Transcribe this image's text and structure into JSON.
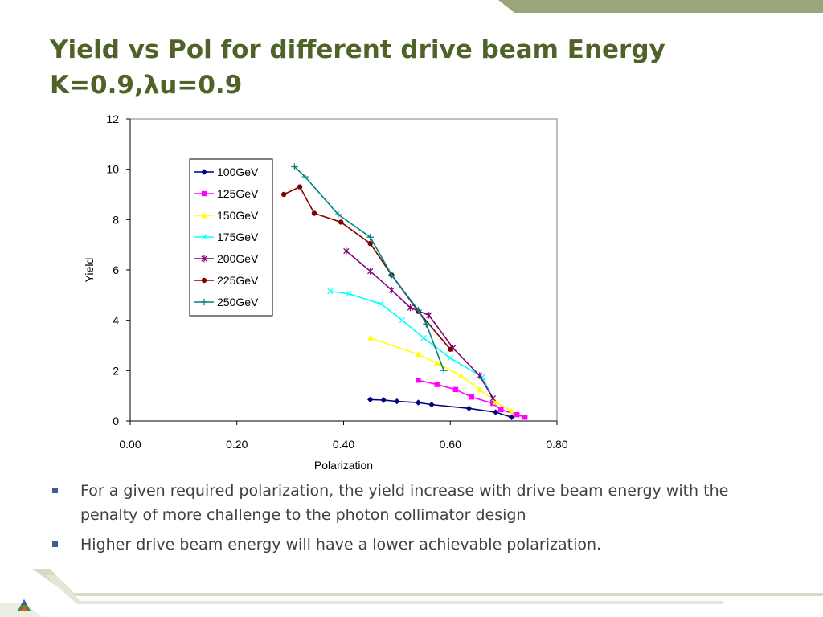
{
  "slide": {
    "title_line1": "Yield vs Pol for different drive beam Energy",
    "title_line2": "K=0.9,λu=0.9",
    "bullets": [
      "For a given required polarization, the yield increase with drive beam energy with the penalty of more challenge to the photon collimator design",
      "Higher drive beam energy will have a lower achievable polarization."
    ]
  },
  "colors": {
    "title": "#4f6228",
    "band": "#9aa57a",
    "bullet": "#3d5a99"
  },
  "chart_data": {
    "type": "line",
    "xlabel": "Polarization",
    "ylabel": "Yield",
    "xlim": [
      0,
      0.8
    ],
    "ylim": [
      0,
      12
    ],
    "x_ticks": [
      "0.00",
      "0.20",
      "0.40",
      "0.60",
      "0.80"
    ],
    "y_ticks": [
      "0",
      "2",
      "4",
      "6",
      "8",
      "10",
      "12"
    ],
    "grid": false,
    "legend_position": "top-left",
    "series": [
      {
        "name": "100GeV",
        "color": "#000080",
        "marker": "diamond",
        "x": [
          0.45,
          0.475,
          0.5,
          0.54,
          0.565,
          0.635,
          0.685,
          0.715
        ],
        "y": [
          0.85,
          0.83,
          0.78,
          0.73,
          0.65,
          0.5,
          0.35,
          0.15
        ]
      },
      {
        "name": "125GeV",
        "color": "#ff00ff",
        "marker": "square",
        "x": [
          0.54,
          0.575,
          0.61,
          0.64,
          0.68,
          0.695,
          0.725,
          0.74
        ],
        "y": [
          1.62,
          1.45,
          1.25,
          0.95,
          0.7,
          0.45,
          0.25,
          0.15
        ]
      },
      {
        "name": "150GeV",
        "color": "#ffff00",
        "marker": "triangle",
        "x": [
          0.45,
          0.54,
          0.575,
          0.62,
          0.655,
          0.685,
          0.715
        ],
        "y": [
          3.3,
          2.65,
          2.3,
          1.8,
          1.25,
          0.75,
          0.4
        ]
      },
      {
        "name": "175GeV",
        "color": "#00ffff",
        "marker": "x",
        "x": [
          0.375,
          0.41,
          0.47,
          0.51,
          0.55,
          0.6,
          0.66,
          0.68
        ],
        "y": [
          5.15,
          5.05,
          4.65,
          4.0,
          3.3,
          2.5,
          1.75,
          0.9
        ]
      },
      {
        "name": "200GeV",
        "color": "#800080",
        "marker": "star",
        "x": [
          0.405,
          0.45,
          0.49,
          0.525,
          0.56,
          0.605,
          0.655,
          0.68
        ],
        "y": [
          6.75,
          5.95,
          5.2,
          4.5,
          4.2,
          2.9,
          1.8,
          0.9
        ]
      },
      {
        "name": "225GeV",
        "color": "#800000",
        "marker": "circle",
        "x": [
          0.288,
          0.318,
          0.345,
          0.395,
          0.45,
          0.49,
          0.54,
          0.6
        ],
        "y": [
          9.0,
          9.3,
          8.25,
          7.9,
          7.05,
          5.8,
          4.35,
          2.85
        ]
      },
      {
        "name": "250GeV",
        "color": "#008080",
        "marker": "plus",
        "x": [
          0.308,
          0.328,
          0.39,
          0.45,
          0.49,
          0.54,
          0.555,
          0.588
        ],
        "y": [
          10.1,
          9.7,
          8.2,
          7.3,
          5.8,
          4.4,
          3.85,
          2.0
        ]
      }
    ]
  }
}
